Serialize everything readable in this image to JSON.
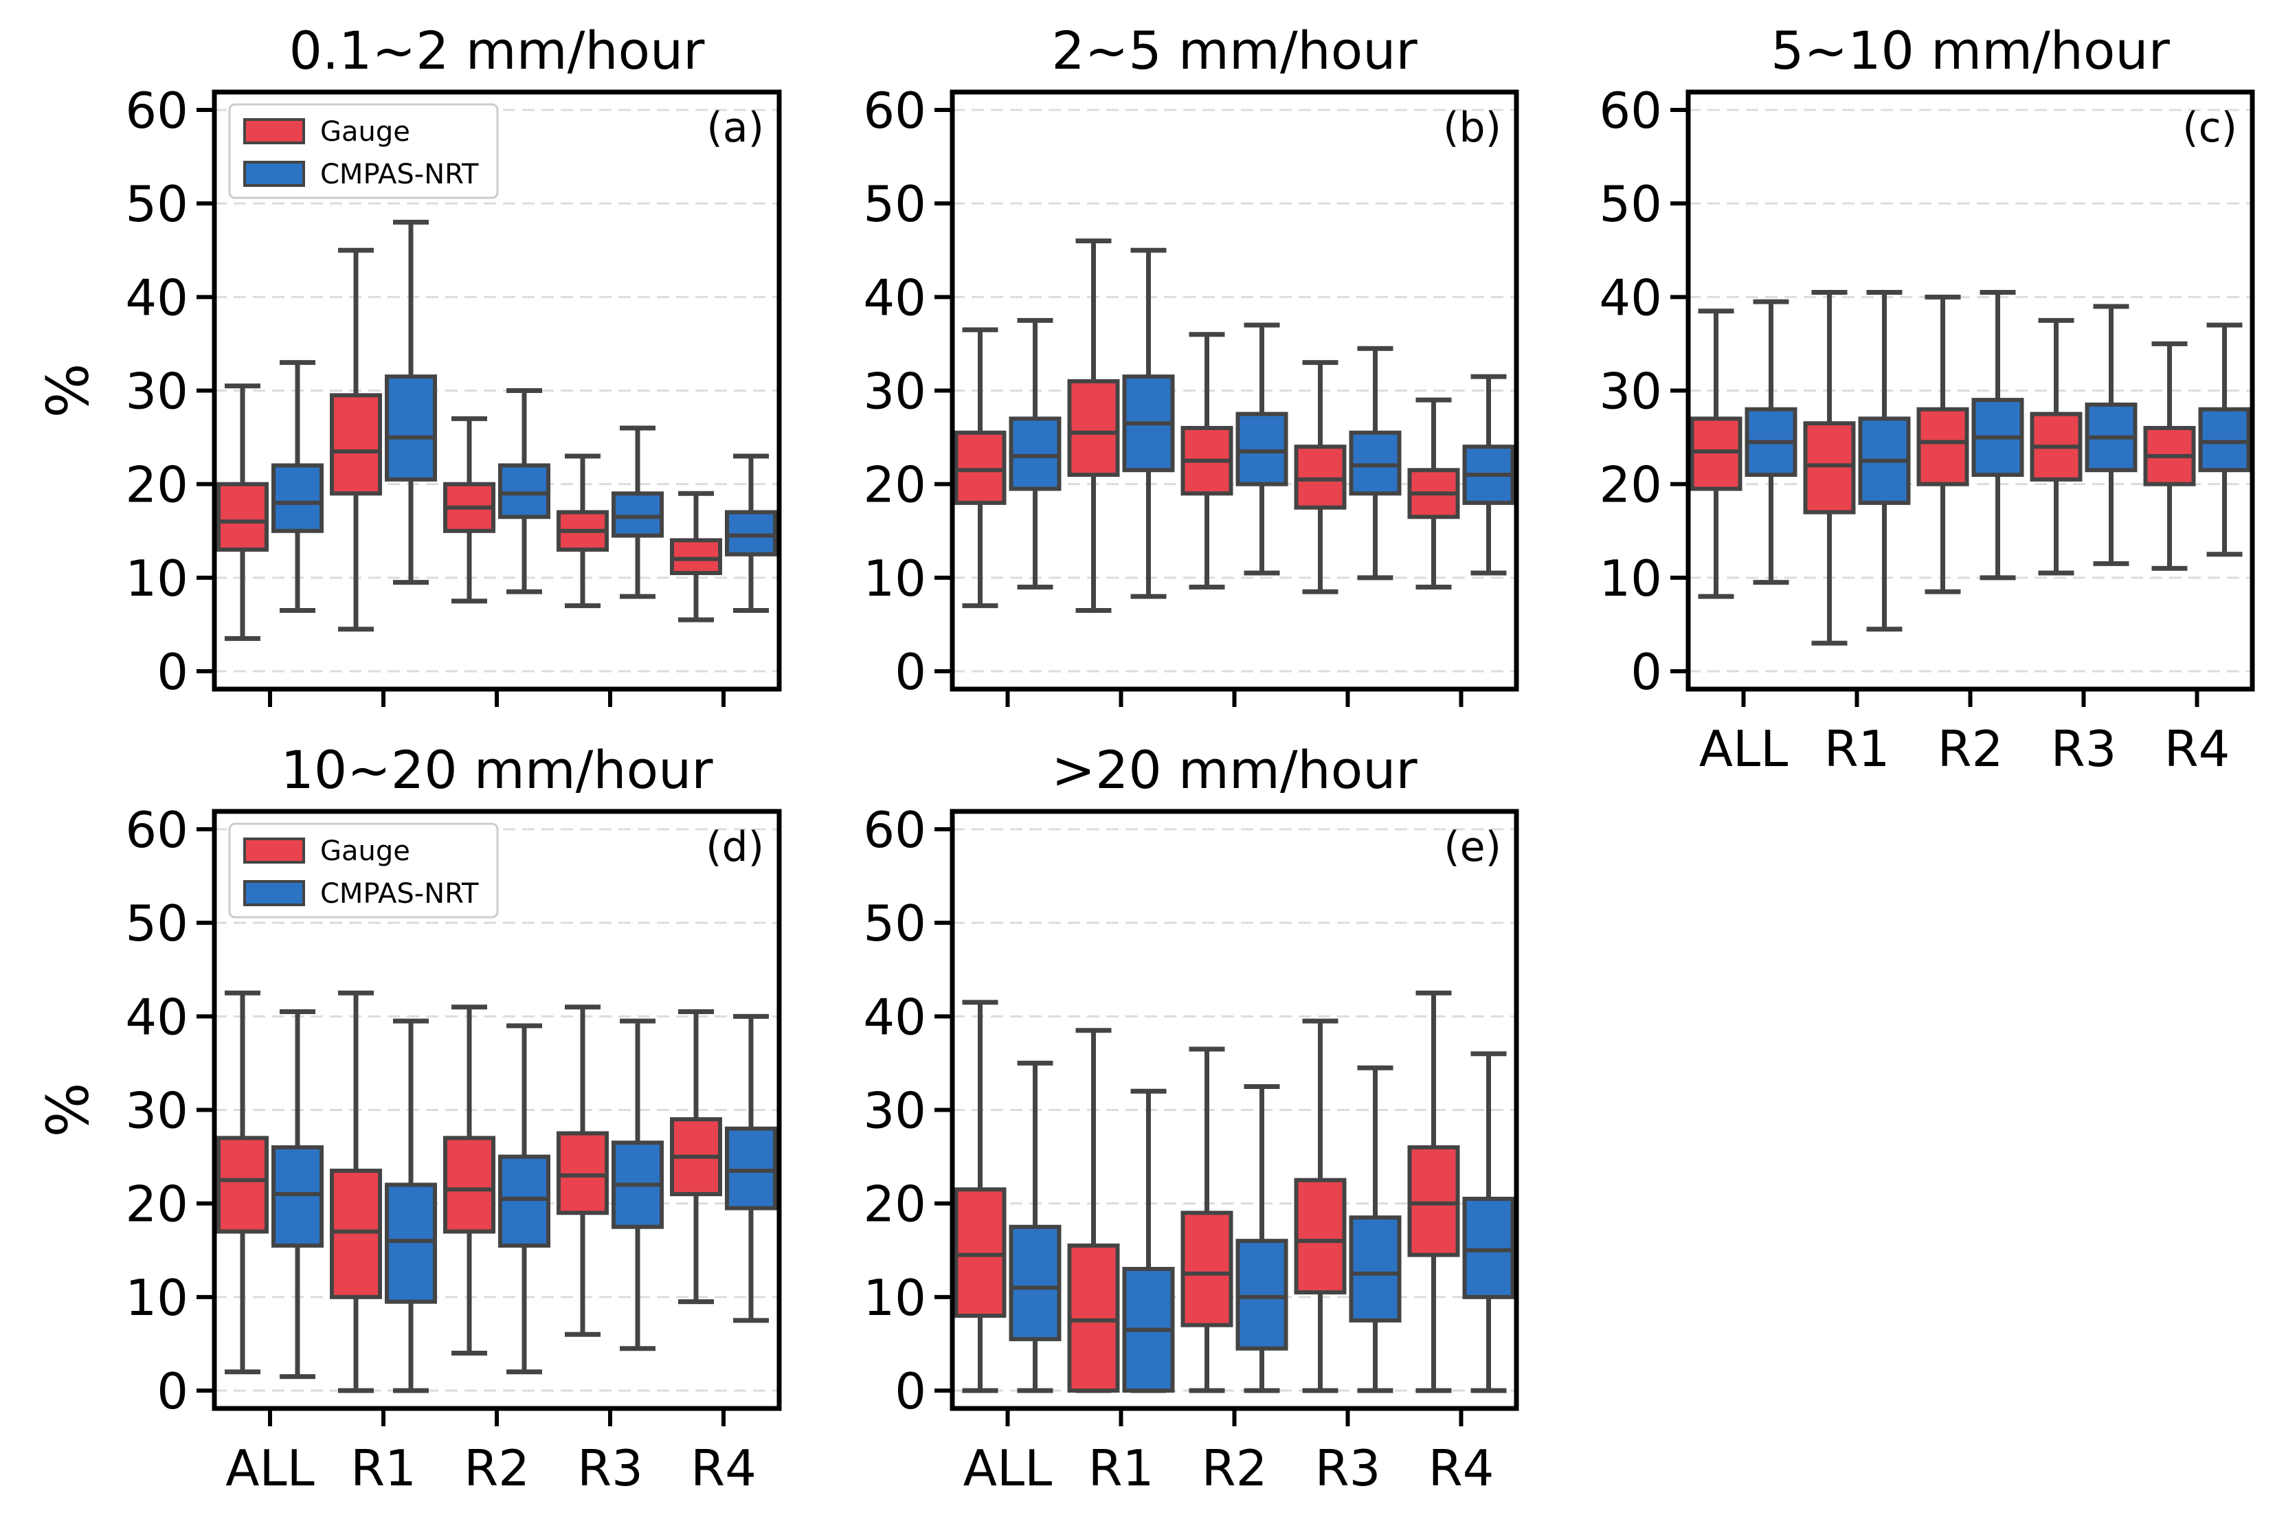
{
  "colors": {
    "gauge": "#e8434e",
    "cmpas": "#2c73c4",
    "edge": "#444444",
    "grid": "#dcdcdc",
    "axis": "#000000"
  },
  "chart_data": [
    {
      "type": "box",
      "title": "0.1~2 mm/hour",
      "panel_label": "(a)",
      "ylabel": "%",
      "ylim": [
        0,
        60
      ],
      "yticks": [
        "0",
        "10",
        "20",
        "30",
        "40",
        "50",
        "60"
      ],
      "categories": [
        "ALL",
        "R1",
        "R2",
        "R3",
        "R4"
      ],
      "show_xticklabels": false,
      "legend": {
        "show": true,
        "position": "top-left",
        "entries": [
          "Gauge",
          "CMPAS-NRT"
        ]
      },
      "series": [
        {
          "name": "Gauge",
          "boxes": [
            {
              "whislo": 3.5,
              "q1": 13,
              "med": 16,
              "q3": 20,
              "whishi": 30.5
            },
            {
              "whislo": 4.5,
              "q1": 19,
              "med": 23.5,
              "q3": 29.5,
              "whishi": 45
            },
            {
              "whislo": 7.5,
              "q1": 15,
              "med": 17.5,
              "q3": 20,
              "whishi": 27
            },
            {
              "whislo": 7,
              "q1": 13,
              "med": 15,
              "q3": 17,
              "whishi": 23
            },
            {
              "whislo": 5.5,
              "q1": 10.5,
              "med": 12,
              "q3": 14,
              "whishi": 19
            }
          ]
        },
        {
          "name": "CMPAS-NRT",
          "boxes": [
            {
              "whislo": 6.5,
              "q1": 15,
              "med": 18,
              "q3": 22,
              "whishi": 33
            },
            {
              "whislo": 9.5,
              "q1": 20.5,
              "med": 25,
              "q3": 31.5,
              "whishi": 48
            },
            {
              "whislo": 8.5,
              "q1": 16.5,
              "med": 19,
              "q3": 22,
              "whishi": 30
            },
            {
              "whislo": 8,
              "q1": 14.5,
              "med": 16.5,
              "q3": 19,
              "whishi": 26
            },
            {
              "whislo": 6.5,
              "q1": 12.5,
              "med": 14.5,
              "q3": 17,
              "whishi": 23
            }
          ]
        }
      ]
    },
    {
      "type": "box",
      "title": "2~5 mm/hour",
      "panel_label": "(b)",
      "ylabel": "",
      "ylim": [
        0,
        60
      ],
      "yticks": [
        "0",
        "10",
        "20",
        "30",
        "40",
        "50",
        "60"
      ],
      "categories": [
        "ALL",
        "R1",
        "R2",
        "R3",
        "R4"
      ],
      "show_xticklabels": false,
      "legend": {
        "show": false
      },
      "series": [
        {
          "name": "Gauge",
          "boxes": [
            {
              "whislo": 7,
              "q1": 18,
              "med": 21.5,
              "q3": 25.5,
              "whishi": 36.5
            },
            {
              "whislo": 6.5,
              "q1": 21,
              "med": 25.5,
              "q3": 31,
              "whishi": 46
            },
            {
              "whislo": 9,
              "q1": 19,
              "med": 22.5,
              "q3": 26,
              "whishi": 36
            },
            {
              "whislo": 8.5,
              "q1": 17.5,
              "med": 20.5,
              "q3": 24,
              "whishi": 33
            },
            {
              "whislo": 9,
              "q1": 16.5,
              "med": 19,
              "q3": 21.5,
              "whishi": 29
            }
          ]
        },
        {
          "name": "CMPAS-NRT",
          "boxes": [
            {
              "whislo": 9,
              "q1": 19.5,
              "med": 23,
              "q3": 27,
              "whishi": 37.5
            },
            {
              "whislo": 8,
              "q1": 21.5,
              "med": 26.5,
              "q3": 31.5,
              "whishi": 45
            },
            {
              "whislo": 10.5,
              "q1": 20,
              "med": 23.5,
              "q3": 27.5,
              "whishi": 37
            },
            {
              "whislo": 10,
              "q1": 19,
              "med": 22,
              "q3": 25.5,
              "whishi": 34.5
            },
            {
              "whislo": 10.5,
              "q1": 18,
              "med": 21,
              "q3": 24,
              "whishi": 31.5
            }
          ]
        }
      ]
    },
    {
      "type": "box",
      "title": "5~10 mm/hour",
      "panel_label": "(c)",
      "ylabel": "",
      "ylim": [
        0,
        60
      ],
      "yticks": [
        "0",
        "10",
        "20",
        "30",
        "40",
        "50",
        "60"
      ],
      "categories": [
        "ALL",
        "R1",
        "R2",
        "R3",
        "R4"
      ],
      "show_xticklabels": true,
      "legend": {
        "show": false
      },
      "series": [
        {
          "name": "Gauge",
          "boxes": [
            {
              "whislo": 8,
              "q1": 19.5,
              "med": 23.5,
              "q3": 27,
              "whishi": 38.5
            },
            {
              "whislo": 3,
              "q1": 17,
              "med": 22,
              "q3": 26.5,
              "whishi": 40.5
            },
            {
              "whislo": 8.5,
              "q1": 20,
              "med": 24.5,
              "q3": 28,
              "whishi": 40
            },
            {
              "whislo": 10.5,
              "q1": 20.5,
              "med": 24,
              "q3": 27.5,
              "whishi": 37.5
            },
            {
              "whislo": 11,
              "q1": 20,
              "med": 23,
              "q3": 26,
              "whishi": 35
            }
          ]
        },
        {
          "name": "CMPAS-NRT",
          "boxes": [
            {
              "whislo": 9.5,
              "q1": 21,
              "med": 24.5,
              "q3": 28,
              "whishi": 39.5
            },
            {
              "whislo": 4.5,
              "q1": 18,
              "med": 22.5,
              "q3": 27,
              "whishi": 40.5
            },
            {
              "whislo": 10,
              "q1": 21,
              "med": 25,
              "q3": 29,
              "whishi": 40.5
            },
            {
              "whislo": 11.5,
              "q1": 21.5,
              "med": 25,
              "q3": 28.5,
              "whishi": 39
            },
            {
              "whislo": 12.5,
              "q1": 21.5,
              "med": 24.5,
              "q3": 28,
              "whishi": 37
            }
          ]
        }
      ]
    },
    {
      "type": "box",
      "title": "10~20 mm/hour",
      "panel_label": "(d)",
      "ylabel": "%",
      "ylim": [
        0,
        60
      ],
      "yticks": [
        "0",
        "10",
        "20",
        "30",
        "40",
        "50",
        "60"
      ],
      "categories": [
        "ALL",
        "R1",
        "R2",
        "R3",
        "R4"
      ],
      "show_xticklabels": true,
      "legend": {
        "show": true,
        "position": "top-left",
        "entries": [
          "Gauge",
          "CMPAS-NRT"
        ]
      },
      "series": [
        {
          "name": "Gauge",
          "boxes": [
            {
              "whislo": 2,
              "q1": 17,
              "med": 22.5,
              "q3": 27,
              "whishi": 42.5
            },
            {
              "whislo": 0,
              "q1": 10,
              "med": 17,
              "q3": 23.5,
              "whishi": 42.5
            },
            {
              "whislo": 4,
              "q1": 17,
              "med": 21.5,
              "q3": 27,
              "whishi": 41
            },
            {
              "whislo": 6,
              "q1": 19,
              "med": 23,
              "q3": 27.5,
              "whishi": 41
            },
            {
              "whislo": 9.5,
              "q1": 21,
              "med": 25,
              "q3": 29,
              "whishi": 40.5
            }
          ]
        },
        {
          "name": "CMPAS-NRT",
          "boxes": [
            {
              "whislo": 1.5,
              "q1": 15.5,
              "med": 21,
              "q3": 26,
              "whishi": 40.5
            },
            {
              "whislo": 0,
              "q1": 9.5,
              "med": 16,
              "q3": 22,
              "whishi": 39.5
            },
            {
              "whislo": 2,
              "q1": 15.5,
              "med": 20.5,
              "q3": 25,
              "whishi": 39
            },
            {
              "whislo": 4.5,
              "q1": 17.5,
              "med": 22,
              "q3": 26.5,
              "whishi": 39.5
            },
            {
              "whislo": 7.5,
              "q1": 19.5,
              "med": 23.5,
              "q3": 28,
              "whishi": 40
            }
          ]
        }
      ]
    },
    {
      "type": "box",
      "title": ">20 mm/hour",
      "panel_label": "(e)",
      "ylabel": "",
      "ylim": [
        0,
        60
      ],
      "yticks": [
        "0",
        "10",
        "20",
        "30",
        "40",
        "50",
        "60"
      ],
      "categories": [
        "ALL",
        "R1",
        "R2",
        "R3",
        "R4"
      ],
      "show_xticklabels": true,
      "legend": {
        "show": false
      },
      "series": [
        {
          "name": "Gauge",
          "boxes": [
            {
              "whislo": 0,
              "q1": 8,
              "med": 14.5,
              "q3": 21.5,
              "whishi": 41.5
            },
            {
              "whislo": 0,
              "q1": 0,
              "med": 7.5,
              "q3": 15.5,
              "whishi": 38.5
            },
            {
              "whislo": 0,
              "q1": 7,
              "med": 12.5,
              "q3": 19,
              "whishi": 36.5
            },
            {
              "whislo": 0,
              "q1": 10.5,
              "med": 16,
              "q3": 22.5,
              "whishi": 39.5
            },
            {
              "whislo": 0,
              "q1": 14.5,
              "med": 20,
              "q3": 26,
              "whishi": 42.5
            }
          ]
        },
        {
          "name": "CMPAS-NRT",
          "boxes": [
            {
              "whislo": 0,
              "q1": 5.5,
              "med": 11,
              "q3": 17.5,
              "whishi": 35
            },
            {
              "whislo": 0,
              "q1": 0,
              "med": 6.5,
              "q3": 13,
              "whishi": 32
            },
            {
              "whislo": 0,
              "q1": 4.5,
              "med": 10,
              "q3": 16,
              "whishi": 32.5
            },
            {
              "whislo": 0,
              "q1": 7.5,
              "med": 12.5,
              "q3": 18.5,
              "whishi": 34.5
            },
            {
              "whislo": 0,
              "q1": 10,
              "med": 15,
              "q3": 20.5,
              "whishi": 36
            }
          ]
        }
      ]
    }
  ]
}
